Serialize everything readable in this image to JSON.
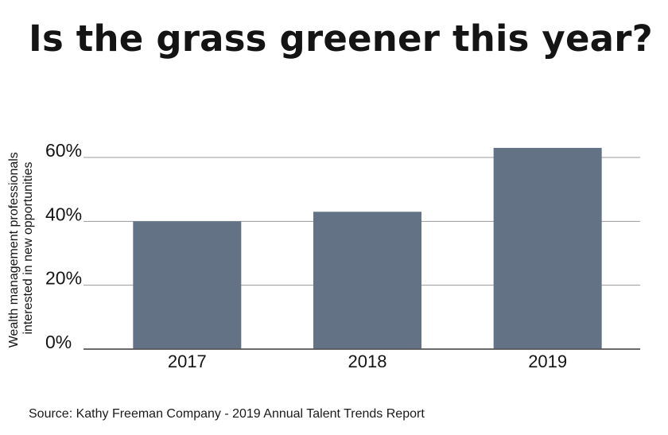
{
  "title": "Is the grass greener this year?",
  "source": "Source: Kathy Freeman Company - 2019 Annual Talent Trends Report",
  "colors": {
    "bar": "#647285",
    "grid": "#999999",
    "axis": "#555555",
    "text": "#141414"
  },
  "chart_data": {
    "type": "bar",
    "title": "Is the grass greener this year?",
    "categories": [
      "2017",
      "2018",
      "2019"
    ],
    "values": [
      40,
      43,
      63
    ],
    "ylabel_lines": [
      "Wealth management professionals",
      "interested in new opportunities"
    ],
    "xlabel": "",
    "ylim": [
      0,
      60
    ],
    "yticks": [
      0,
      20,
      40,
      60
    ],
    "ytick_labels": [
      "0%",
      "20%",
      "40%",
      "60%"
    ],
    "grid": true,
    "legend": "none"
  }
}
